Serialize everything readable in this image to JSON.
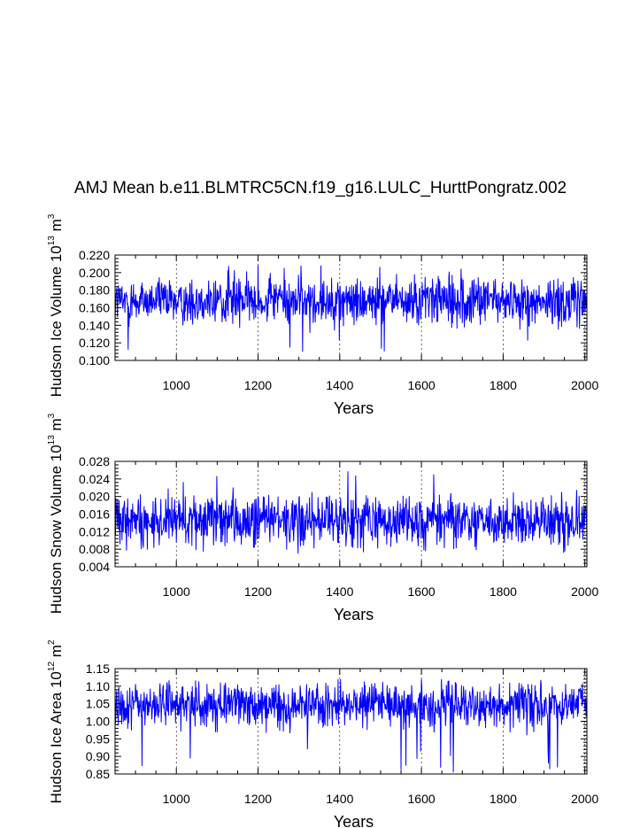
{
  "title": "AMJ Mean b.e11.BLMTRC5CN.f19_g16.LULC_HurttPongratz.002",
  "chart_data": [
    {
      "type": "line",
      "ylabel": {
        "text": "Hudson Ice Volume 10",
        "exp": "13",
        "unit": " m",
        "unit_exp": "3"
      },
      "xlabel": "Years",
      "xlim": [
        850,
        2005
      ],
      "ylim": [
        0.1,
        0.22
      ],
      "xticks": [
        "1000",
        "1200",
        "1400",
        "1600",
        "1800",
        "2000"
      ],
      "yticks": [
        "0.100",
        "0.120",
        "0.140",
        "0.160",
        "0.180",
        "0.200",
        "0.220"
      ],
      "series": [
        {
          "name": "Hudson Ice Volume",
          "color": "#0000ff",
          "x_start": 850,
          "x_end": 2005,
          "mean": 0.168,
          "sd": 0.013,
          "min": 0.11,
          "max": 0.209
        }
      ]
    },
    {
      "type": "line",
      "ylabel": {
        "text": "Hudson Snow Volume 10",
        "exp": "13",
        "unit": " m",
        "unit_exp": "3"
      },
      "xlabel": "Years",
      "xlim": [
        850,
        2005
      ],
      "ylim": [
        0.004,
        0.028
      ],
      "xticks": [
        "1000",
        "1200",
        "1400",
        "1600",
        "1800",
        "2000"
      ],
      "yticks": [
        "0.004",
        "0.008",
        "0.012",
        "0.016",
        "0.020",
        "0.024",
        "0.028"
      ],
      "series": [
        {
          "name": "Hudson Snow Volume",
          "color": "#0000ff",
          "x_start": 850,
          "x_end": 2005,
          "mean": 0.0145,
          "sd": 0.0028,
          "min": 0.007,
          "max": 0.027
        }
      ]
    },
    {
      "type": "line",
      "ylabel": {
        "text": "Hudson Ice Area 10",
        "exp": "12",
        "unit": " m",
        "unit_exp": "2"
      },
      "xlabel": "Years",
      "xlim": [
        850,
        2005
      ],
      "ylim": [
        0.85,
        1.15
      ],
      "xticks": [
        "1000",
        "1200",
        "1400",
        "1600",
        "1800",
        "2000"
      ],
      "yticks": [
        "0.85",
        "0.90",
        "0.95",
        "1.00",
        "1.05",
        "1.10",
        "1.15"
      ],
      "series": [
        {
          "name": "Hudson Ice Area",
          "color": "#0000ff",
          "x_start": 850,
          "x_end": 2005,
          "mean": 1.045,
          "sd": 0.03,
          "min": 0.85,
          "max": 1.12
        }
      ]
    }
  ]
}
